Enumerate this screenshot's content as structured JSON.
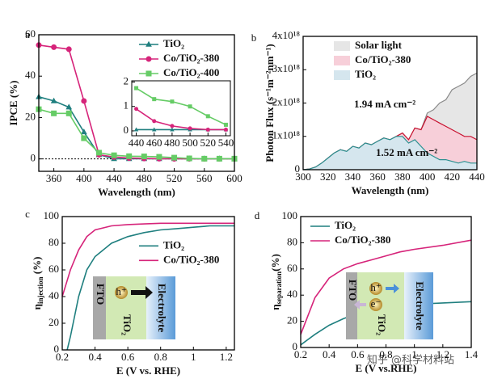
{
  "chart_data": [
    {
      "type": "line",
      "panel_label": "a",
      "xlabel": "Wavelength (nm)",
      "ylabel": "IPCE (%)",
      "xlim": [
        340,
        600
      ],
      "ylim": [
        -6,
        60
      ],
      "xticks": [
        360,
        400,
        440,
        480,
        520,
        560,
        600
      ],
      "yticks": [
        0,
        20,
        40,
        60
      ],
      "reference_line": 0,
      "legend": "upper right",
      "x": [
        340,
        360,
        380,
        400,
        420,
        440,
        460,
        480,
        500,
        520,
        540,
        560,
        580,
        600
      ],
      "series": [
        {
          "name": "TiO₂",
          "color": "#1f7f7f",
          "marker": "triangle",
          "values": [
            30,
            28,
            25,
            13,
            2,
            0.05,
            0.05,
            0.05,
            0.05,
            0.05,
            0.05,
            0.05,
            0.05,
            0.05
          ]
        },
        {
          "name": "Co/TiO₂-380",
          "color": "#d6247a",
          "marker": "circle",
          "values": [
            55,
            54,
            53,
            28,
            2,
            0.9,
            0.4,
            0.2,
            0.1,
            0.05,
            0.05,
            0.05,
            0.05,
            0.05
          ]
        },
        {
          "name": "Co/TiO₂-400",
          "color": "#66cc66",
          "marker": "square",
          "values": [
            24,
            22,
            22,
            10,
            3,
            1.75,
            1.3,
            1.2,
            1.0,
            0.6,
            0.25,
            0.1,
            0.1,
            0.1
          ]
        }
      ]
    },
    {
      "type": "line",
      "xlim": [
        435,
        545
      ],
      "ylim": [
        -0.2,
        2.05
      ],
      "xticks": [
        440,
        460,
        480,
        500,
        520,
        540
      ],
      "yticks": [
        0,
        1,
        2
      ],
      "x": [
        440,
        460,
        480,
        500,
        520,
        540
      ],
      "series": [
        {
          "color": "#1f7f7f",
          "marker": "triangle",
          "values": [
            0.05,
            0.05,
            0.05,
            0.05,
            0.05,
            0.05
          ]
        },
        {
          "color": "#d6247a",
          "marker": "circle",
          "values": [
            0.9,
            0.4,
            0.2,
            0.1,
            0.05,
            0.05
          ]
        },
        {
          "color": "#66cc66",
          "marker": "square",
          "values": [
            1.75,
            1.3,
            1.2,
            1.0,
            0.6,
            0.25
          ]
        }
      ]
    },
    {
      "type": "area",
      "panel_label": "b",
      "xlabel": "Wavelength (nm)",
      "ylabel": "Photon Flux (s⁻¹m⁻²nm⁻¹)",
      "xlim": [
        300,
        440
      ],
      "ylim": [
        0,
        4e+18
      ],
      "xticks": [
        300,
        320,
        340,
        360,
        380,
        400,
        420,
        440
      ],
      "yticks": [
        0,
        {
          "value": 1e+18,
          "label": "1x10¹⁸"
        },
        {
          "value": 2e+18,
          "label": "2x10¹⁸"
        },
        {
          "value": 3e+18,
          "label": "3x10¹⁸"
        },
        {
          "value": 4e+18,
          "label": "4x10¹⁸"
        }
      ],
      "legend": "upper left",
      "x": [
        300,
        305,
        310,
        315,
        320,
        325,
        330,
        335,
        340,
        345,
        350,
        355,
        360,
        365,
        370,
        375,
        380,
        385,
        390,
        395,
        400,
        405,
        410,
        415,
        420,
        425,
        430,
        435,
        440
      ],
      "series": [
        {
          "name": "Solar light",
          "color": "#8a8a8a",
          "fill": "#e6e6e6",
          "values": [
            0,
            2e+16,
            8e+16,
            2e+17,
            3.5e+17,
            5e+17,
            6e+17,
            5.5e+17,
            7e+17,
            6.5e+17,
            8e+17,
            7.5e+17,
            8.5e+17,
            9.5e+17,
            9e+17,
            1e+18,
            1.1e+18,
            9e+17,
            1.25e+18,
            1.2e+18,
            1.7e+18,
            1.8e+18,
            2e+18,
            2.1e+18,
            2.4e+18,
            2.5e+18,
            2.6e+18,
            2.8e+18,
            2.9e+18
          ]
        },
        {
          "name": "Co/TiO₂-380",
          "color": "#c8102e",
          "fill": "#f7cfd9",
          "values": [
            0,
            2e+16,
            8e+16,
            2e+17,
            3.5e+17,
            5e+17,
            6e+17,
            5.5e+17,
            7e+17,
            6.5e+17,
            8e+17,
            7.5e+17,
            8.5e+17,
            9.5e+17,
            9e+17,
            1e+18,
            1.1e+18,
            9e+17,
            1.25e+18,
            1.2e+18,
            1.6e+18,
            1.5e+18,
            1.4e+18,
            1.3e+18,
            1.2e+18,
            1.1e+18,
            1e+18,
            1e+18,
            9e+17
          ]
        },
        {
          "name": "TiO₂",
          "color": "#2a9090",
          "fill": "#d5e6ee",
          "values": [
            0,
            2e+16,
            8e+16,
            2e+17,
            3.5e+17,
            5e+17,
            6e+17,
            5.5e+17,
            7e+17,
            6.5e+17,
            8e+17,
            7.5e+17,
            8.5e+17,
            9.5e+17,
            9e+17,
            1e+18,
            1e+18,
            8e+17,
            9e+17,
            7e+17,
            5e+17,
            4e+17,
            3e+17,
            3e+17,
            2.5e+17,
            2e+17,
            2.5e+17,
            2e+17,
            2e+17
          ]
        }
      ],
      "annotations": [
        {
          "text": "1.94 mA cm⁻²",
          "color": "#c8102e"
        },
        {
          "text": "1.52 mA cm⁻²",
          "color": "#2a9090"
        }
      ]
    },
    {
      "type": "line",
      "panel_label": "c",
      "xlabel": "E (V vs. RHE)",
      "ylabel": [
        "η",
        "injection",
        " (%)"
      ],
      "xlim": [
        0.2,
        1.25
      ],
      "ylim": [
        0,
        100
      ],
      "xticks": [
        0.2,
        0.4,
        0.6,
        0.8,
        1.0,
        1.2
      ],
      "yticks": [
        0,
        20,
        40,
        60,
        80,
        100
      ],
      "legend": "center right",
      "x": [
        0.2,
        0.23,
        0.25,
        0.3,
        0.35,
        0.4,
        0.5,
        0.6,
        0.7,
        0.8,
        0.9,
        1.0,
        1.1,
        1.25
      ],
      "series": [
        {
          "name": "TiO₂",
          "color": "#1f7f7f",
          "values": [
            null,
            0,
            10,
            40,
            60,
            70,
            80,
            85,
            88,
            90,
            91,
            92,
            93,
            93
          ]
        },
        {
          "name": "Co/TiO₂-380",
          "color": "#d6247a",
          "values": [
            40,
            52,
            60,
            75,
            85,
            90,
            93,
            94,
            94.5,
            95,
            95,
            95,
            95,
            95
          ]
        }
      ],
      "schematic": [
        "FTO",
        "TiO₂",
        "Electrolyte",
        "h⁺"
      ]
    },
    {
      "type": "line",
      "panel_label": "d",
      "xlabel": "E (V vs.RHE)",
      "ylabel": [
        "η",
        "separation",
        "(%)"
      ],
      "xlim": [
        0.2,
        1.4
      ],
      "ylim": [
        0,
        100
      ],
      "xticks": [
        0.2,
        0.4,
        0.6,
        0.8,
        1.0,
        1.2,
        1.4
      ],
      "yticks": [
        0,
        20,
        40,
        60,
        80,
        100
      ],
      "legend": "upper left",
      "x": [
        0.2,
        0.3,
        0.4,
        0.5,
        0.6,
        0.7,
        0.8,
        0.9,
        1.0,
        1.2,
        1.4
      ],
      "series": [
        {
          "name": "TiO₂",
          "color": "#1f7f7f",
          "values": [
            2,
            10,
            17,
            22,
            26,
            28,
            31,
            32,
            33,
            34,
            35
          ]
        },
        {
          "name": "Co/TiO₂-380",
          "color": "#d6247a",
          "values": [
            10,
            38,
            53,
            60,
            64,
            67,
            70,
            73,
            75,
            78,
            82
          ]
        }
      ],
      "schematic": [
        "FTO",
        "TiO₂",
        "Electrolyte",
        "h⁺",
        "e⁻"
      ],
      "watermark": "知乎 @科学材料站"
    }
  ]
}
